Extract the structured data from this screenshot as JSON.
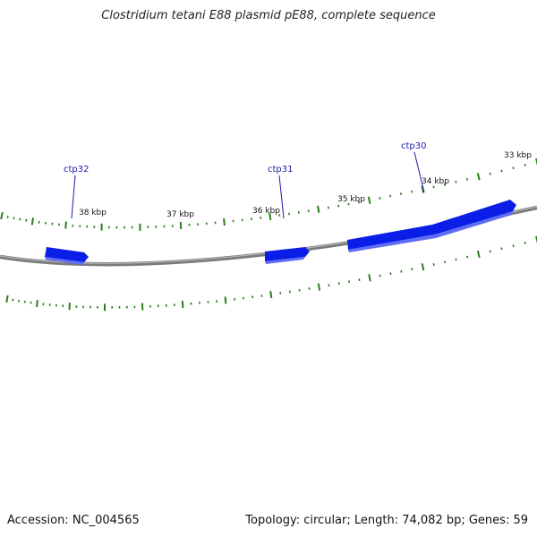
{
  "title": "Clostridium tetani E88 plasmid pE88, complete sequence",
  "footer": {
    "accession": "Accession: NC_004565",
    "summary": "Topology: circular; Length: 74,082 bp; Genes: 59"
  },
  "colors": {
    "gene_fill": "#0a1ee8",
    "gene_edge": "#5f6cf5",
    "backbone": "#7a7a7a",
    "tick": "#2d7d1f",
    "gene_label": "#1a1aa8"
  },
  "scale_labels": [
    "38 kbp",
    "37 kbp",
    "36 kbp",
    "35 kbp",
    "34 kbp",
    "33 kbp"
  ],
  "genes": [
    {
      "name": "ctp32",
      "strand": "forward"
    },
    {
      "name": "ctp31",
      "strand": "forward"
    },
    {
      "name": "ctp30",
      "strand": "forward"
    }
  ]
}
